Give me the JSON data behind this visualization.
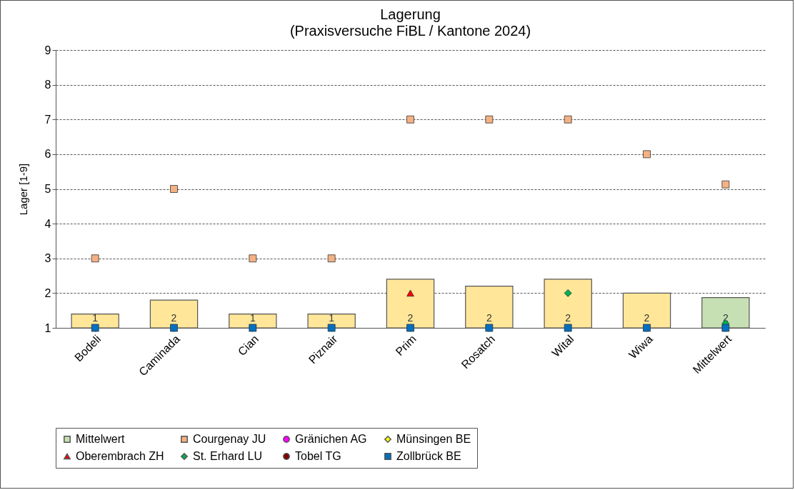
{
  "chart_data": {
    "type": "bar",
    "title": "Lagerung",
    "subtitle": "(Praxisversuche FiBL / Kantone 2024)",
    "ylabel": "Lager [1-9]",
    "categories": [
      "Bodeli",
      "Caminada",
      "Cian",
      "Piznair",
      "Prim",
      "Rosatch",
      "Wital",
      "Wiwa",
      "Mittelwert"
    ],
    "ylim": [
      1,
      9
    ],
    "yticks": [
      1,
      2,
      3,
      4,
      5,
      6,
      7,
      8,
      9
    ],
    "grid": "y",
    "legend": "bottom",
    "series": [
      {
        "name": "Mittelwert",
        "color": "#c6e0b4",
        "colors": [
          "#ffe699",
          "#ffe699",
          "#ffe699",
          "#ffe699",
          "#ffe699",
          "#ffe699",
          "#ffe699",
          "#ffe699",
          "#c6e0b4"
        ],
        "values": [
          1.4,
          1.8,
          1.4,
          1.4,
          2.4,
          2.2,
          2.4,
          2.0,
          1.87
        ],
        "value_labels": [
          "1",
          "2",
          "1",
          "1",
          "2",
          "2",
          "2",
          "2",
          "2"
        ]
      },
      {
        "name": "Courgenay JU",
        "type": "scatter",
        "marker": "square",
        "color": "#f4b183",
        "values": [
          3,
          5,
          3,
          3,
          7,
          7,
          7,
          6,
          5.13
        ]
      },
      {
        "name": "Gränichen AG",
        "type": "scatter",
        "marker": "circle",
        "color": "#ff00ff",
        "values": [
          null,
          null,
          null,
          null,
          null,
          null,
          null,
          null,
          null
        ]
      },
      {
        "name": "Münsingen BE",
        "type": "scatter",
        "marker": "diamond",
        "color": "#ffff00",
        "values": [
          null,
          null,
          null,
          null,
          null,
          null,
          null,
          null,
          null
        ]
      },
      {
        "name": "Oberembrach ZH",
        "type": "scatter",
        "marker": "triangle",
        "color": "#ff0000",
        "values": [
          null,
          null,
          null,
          null,
          2,
          null,
          null,
          null,
          null
        ]
      },
      {
        "name": "St. Erhard LU",
        "type": "scatter",
        "marker": "diamond",
        "color": "#00b050",
        "values": [
          null,
          null,
          null,
          null,
          null,
          null,
          2,
          null,
          1.13
        ]
      },
      {
        "name": "Tobel TG",
        "type": "scatter",
        "marker": "circle",
        "color": "#800000",
        "values": [
          null,
          null,
          null,
          null,
          null,
          null,
          null,
          null,
          null
        ]
      },
      {
        "name": "Zollbrück BE",
        "type": "scatter",
        "marker": "square",
        "color": "#0070c0",
        "values": [
          1,
          1,
          1,
          1,
          1,
          1,
          1,
          1,
          1
        ]
      }
    ]
  }
}
